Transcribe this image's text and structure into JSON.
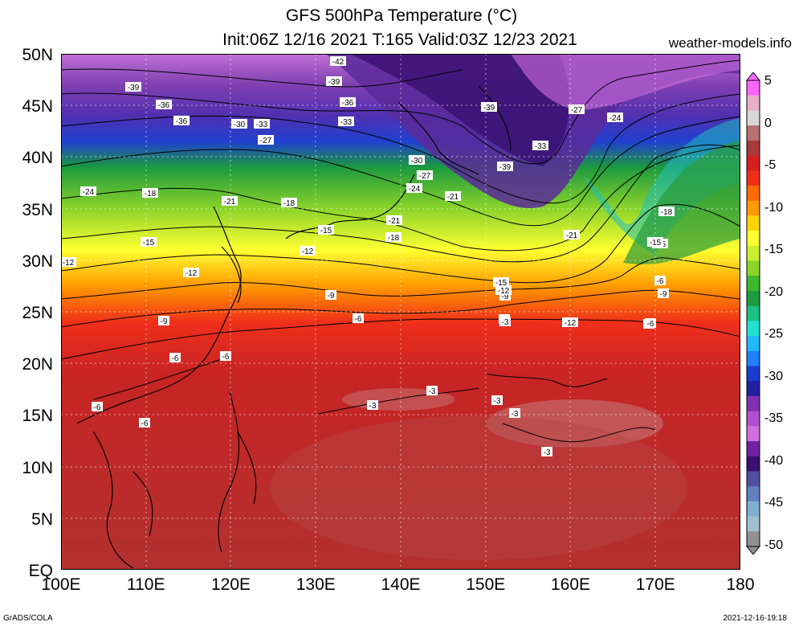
{
  "title_line1": "GFS 500hPa Temperature (°C)",
  "title_line2": "Init:06Z 12/16 2021 T:165 Valid:03Z 12/23 2021",
  "site": "weather-models.info",
  "footer_left": "GrADS/COLA",
  "footer_right": "2021-12-16-19:18",
  "lat_labels": [
    "50N",
    "45N",
    "40N",
    "35N",
    "30N",
    "25N",
    "20N",
    "15N",
    "10N",
    "5N",
    "EQ"
  ],
  "lon_labels": [
    "100E",
    "110E",
    "120E",
    "130E",
    "140E",
    "150E",
    "160E",
    "170E",
    "180"
  ],
  "colorbar_labels": [
    "5",
    "0",
    "-5",
    "-10",
    "-15",
    "-20",
    "-25",
    "-30",
    "-35",
    "-40",
    "-45",
    "-50"
  ],
  "colorbar_colors": [
    "#ff66ff",
    "#e7b0c8",
    "#d8d8d8",
    "#b97070",
    "#a83a3a",
    "#d42020",
    "#ef2f1a",
    "#ff6a00",
    "#ff9a00",
    "#ffd400",
    "#ffff30",
    "#c9ee30",
    "#8bd42a",
    "#3cb82e",
    "#1c9a3e",
    "#1cc080",
    "#20e0d0",
    "#20b8ff",
    "#2080ff",
    "#1a3cd0",
    "#2020a0",
    "#8030b0",
    "#b050d0",
    "#d070e0",
    "#7020a0",
    "#3a1070",
    "#5050a0",
    "#6080c0",
    "#80b0d0",
    "#a0c0d0",
    "#909090"
  ],
  "contour_labels": [
    "-42",
    "-39",
    "-39",
    "-36",
    "-36",
    "-33",
    "-33",
    "-30",
    "-27",
    "-24",
    "-39",
    "-36",
    "-33",
    "-39",
    "-30",
    "-27",
    "-21",
    "-27",
    "-24",
    "-24",
    "-21",
    "-18",
    "-21",
    "-18",
    "-15",
    "-12",
    "-15",
    "-12",
    "-18",
    "-21",
    "-18",
    "-15",
    "-12",
    "-9",
    "-9",
    "-6",
    "-6",
    "-6",
    "-9",
    "-6",
    "-15",
    "-12",
    "-9",
    "-6",
    "-3",
    "-3",
    "-3",
    "-3",
    "-3",
    "-3",
    "-6",
    "-6",
    "-12",
    "-9",
    "-6",
    "-15"
  ]
}
